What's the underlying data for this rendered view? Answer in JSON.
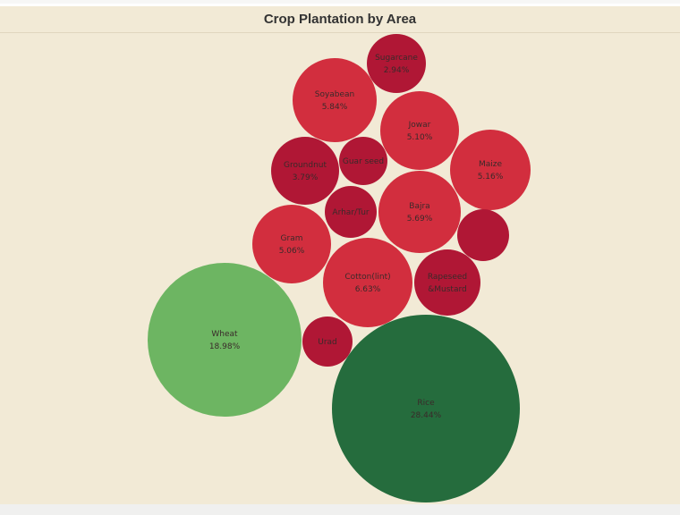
{
  "chart_data": {
    "type": "bubble",
    "title": "Crop Plantation by Area",
    "bubbles": [
      {
        "name": "Rice",
        "value_label": "28.44%",
        "value": 28.44,
        "color": "#256c3d"
      },
      {
        "name": "Wheat",
        "value_label": "18.98%",
        "value": 18.98,
        "color": "#6db562"
      },
      {
        "name": "Cotton(lint)",
        "value_label": "6.63%",
        "value": 6.63,
        "color": "#d22e3e"
      },
      {
        "name": "Soyabean",
        "value_label": "5.84%",
        "value": 5.84,
        "color": "#d22e3e"
      },
      {
        "name": "Bajra",
        "value_label": "5.69%",
        "value": 5.69,
        "color": "#d22e3e"
      },
      {
        "name": "Maize",
        "value_label": "5.16%",
        "value": 5.16,
        "color": "#d22e3e"
      },
      {
        "name": "Jowar",
        "value_label": "5.10%",
        "value": 5.1,
        "color": "#d22e3e"
      },
      {
        "name": "Gram",
        "value_label": "5.06%",
        "value": 5.06,
        "color": "#d22e3e"
      },
      {
        "name": "Groundnut",
        "value_label": "3.79%",
        "value": 3.79,
        "color": "#b01735"
      },
      {
        "name": "Rapeseed &Mustard",
        "lines": [
          "Rapeseed",
          "&Mustard"
        ],
        "value_label": "",
        "value": null,
        "color": "#b01735"
      },
      {
        "name": "Sugarcane",
        "value_label": "2.94%",
        "value": 2.94,
        "color": "#b01735"
      },
      {
        "name": "Arhar/Tur",
        "value_label": "",
        "value": null,
        "color": "#b01735"
      },
      {
        "name": "Guar seed",
        "value_label": "",
        "value": null,
        "color": "#b01735"
      },
      {
        "name": "Urad",
        "value_label": "",
        "value": null,
        "color": "#b01735"
      },
      {
        "name": "",
        "value_label": "",
        "value": null,
        "color": "#b01735"
      }
    ]
  }
}
